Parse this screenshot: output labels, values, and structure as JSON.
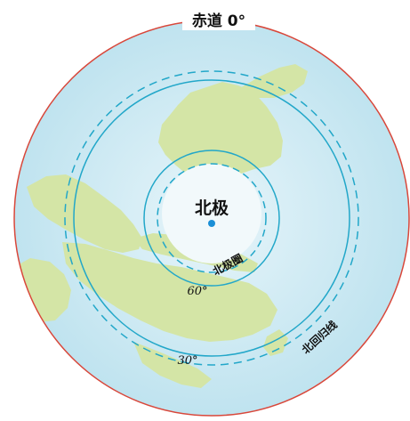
{
  "labels": {
    "equator": "赤道 0°",
    "north_pole": "北极",
    "arctic_circle": "北极圈",
    "lat_60": "60°",
    "tropic_of_cancer": "北回归线",
    "lat_30": "30°"
  },
  "colors": {
    "ocean": "#bfe3ef",
    "ocean_center": "#e7f5fa",
    "land": "#d4e5a6",
    "ice": "#f2f9fb",
    "equator_ring": "#d9473a",
    "latitude_line": "#22a7c9",
    "pole_dot": "#1b8fd6",
    "label_text": "#111111"
  }
}
